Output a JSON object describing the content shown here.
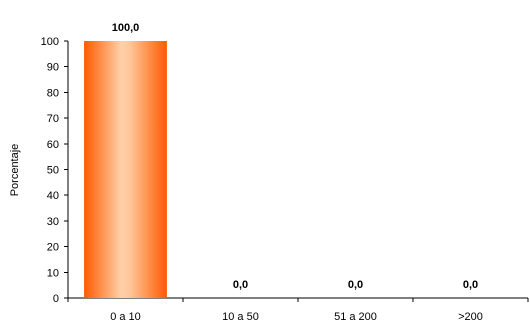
{
  "chart_data": {
    "type": "bar",
    "categories": [
      "0 a 10",
      "10 a 50",
      "51 a 200",
      ">200"
    ],
    "values": [
      100.0,
      0.0,
      0.0,
      0.0
    ],
    "value_labels": [
      "100,0",
      "0,0",
      "0,0",
      "0,0"
    ],
    "ylabel": "Porcentaje",
    "xlabel": "",
    "ylim": [
      0,
      100
    ],
    "y_ticks": [
      "0",
      "10",
      "20",
      "30",
      "40",
      "50",
      "60",
      "70",
      "80",
      "90",
      "100"
    ],
    "grid": false,
    "legend": "none",
    "colors": {
      "bar_edge": "#ff5a00",
      "bar_center": "#ffd0a8",
      "axis": "#000000"
    }
  }
}
